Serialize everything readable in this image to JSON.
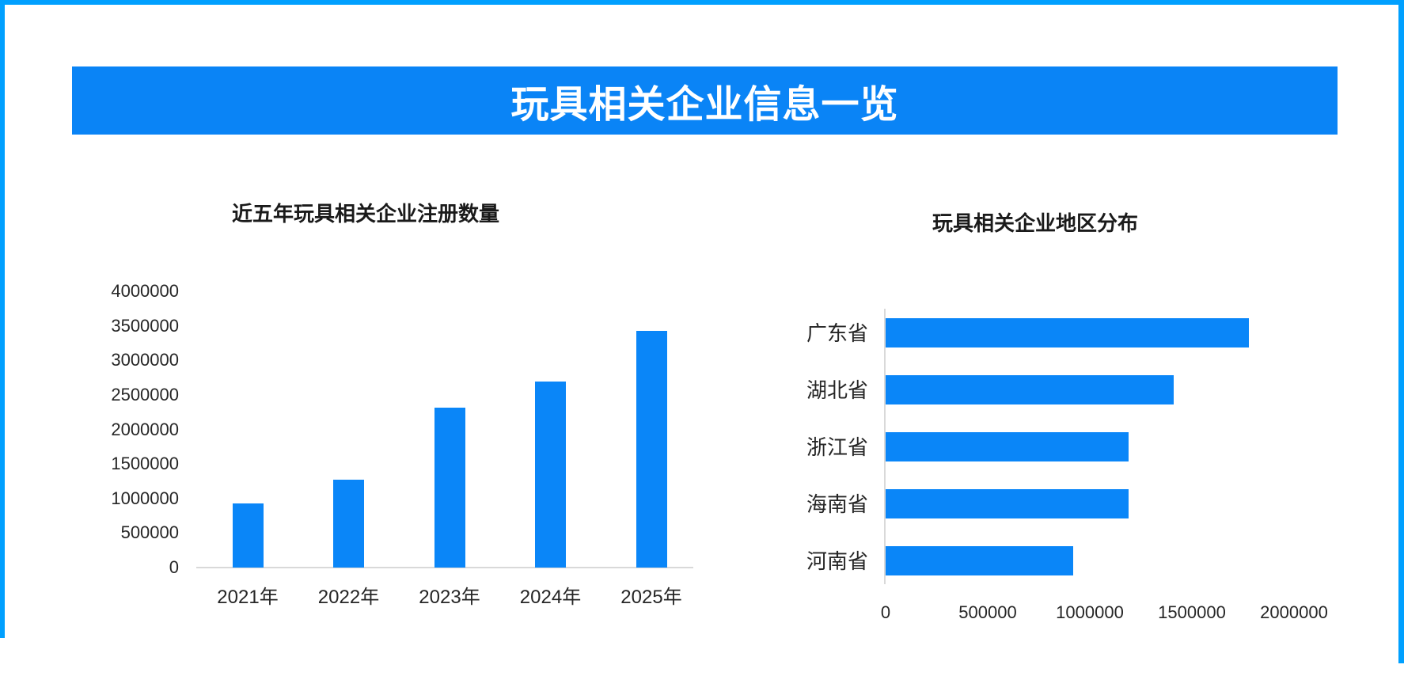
{
  "page": {
    "title": "玩具相关企业信息一览"
  },
  "colors": {
    "frame_border": "#00A0FF",
    "banner_bg": "#0A84F6",
    "bar_fill": "#0A86F8",
    "axis_line": "#D9D9D9",
    "label_text": "#262626",
    "banner_text": "#FFFFFF"
  },
  "chart_data": [
    {
      "id": "registrations",
      "type": "bar",
      "orientation": "vertical",
      "title": "近五年玩具相关企业注册数量",
      "categories": [
        "2021年",
        "2022年",
        "2023年",
        "2024年",
        "2025年"
      ],
      "values": [
        930000,
        1270000,
        2310000,
        2690000,
        3430000
      ],
      "ylabel": "",
      "xlabel": "",
      "ylim": [
        0,
        4000000
      ],
      "yticks": [
        0,
        500000,
        1000000,
        1500000,
        2000000,
        2500000,
        3000000,
        3500000,
        4000000
      ],
      "ytick_labels": [
        "0",
        "500000",
        "1000000",
        "1500000",
        "2000000",
        "2500000",
        "3000000",
        "3500000",
        "4000000"
      ],
      "grid": false,
      "legend": "none"
    },
    {
      "id": "regions",
      "type": "bar",
      "orientation": "horizontal",
      "title": "玩具相关企业地区分布",
      "categories": [
        "广东省",
        "湖北省",
        "浙江省",
        "海南省",
        "河南省"
      ],
      "values": [
        1780000,
        1410000,
        1190000,
        1190000,
        920000
      ],
      "ylabel": "",
      "xlabel": "",
      "xlim": [
        0,
        2000000
      ],
      "xticks": [
        0,
        500000,
        1000000,
        1500000,
        2000000
      ],
      "xtick_labels": [
        "0",
        "500000",
        "1000000",
        "1500000",
        "2000000"
      ],
      "grid": false,
      "legend": "none"
    }
  ]
}
